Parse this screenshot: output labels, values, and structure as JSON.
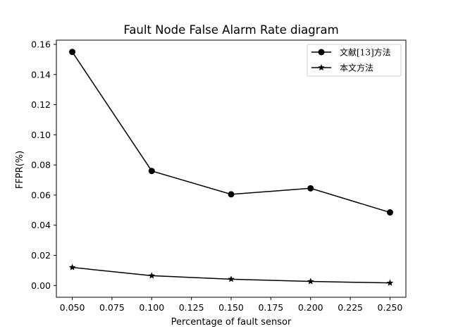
{
  "chart_data": {
    "type": "line",
    "title": "Fault Node False Alarm Rate diagram",
    "xlabel": "Percentage of fault sensor",
    "ylabel": "FFPR(%)",
    "x": [
      0.05,
      0.1,
      0.15,
      0.2,
      0.25
    ],
    "xlim": [
      0.04,
      0.26
    ],
    "ylim": [
      -0.0078,
      0.1628
    ],
    "xticks": [
      0.05,
      0.075,
      0.1,
      0.125,
      0.15,
      0.175,
      0.2,
      0.225,
      0.25
    ],
    "xtick_labels": [
      "0.050",
      "0.075",
      "0.100",
      "0.125",
      "0.150",
      "0.175",
      "0.200",
      "0.225",
      "0.250"
    ],
    "yticks": [
      0.0,
      0.02,
      0.04,
      0.06,
      0.08,
      0.1,
      0.12,
      0.14,
      0.16
    ],
    "ytick_labels": [
      "0.00",
      "0.02",
      "0.04",
      "0.06",
      "0.08",
      "0.10",
      "0.12",
      "0.14",
      "0.16"
    ],
    "grid": false,
    "legend_position": "top-right",
    "series": [
      {
        "name": "文献[13]方法",
        "marker": "circle",
        "color": "#000000",
        "values": [
          0.155,
          0.076,
          0.0605,
          0.0645,
          0.0485
        ]
      },
      {
        "name": "本文方法",
        "marker": "star",
        "color": "#000000",
        "values": [
          0.012,
          0.0065,
          0.0042,
          0.0027,
          0.0017
        ]
      }
    ]
  }
}
